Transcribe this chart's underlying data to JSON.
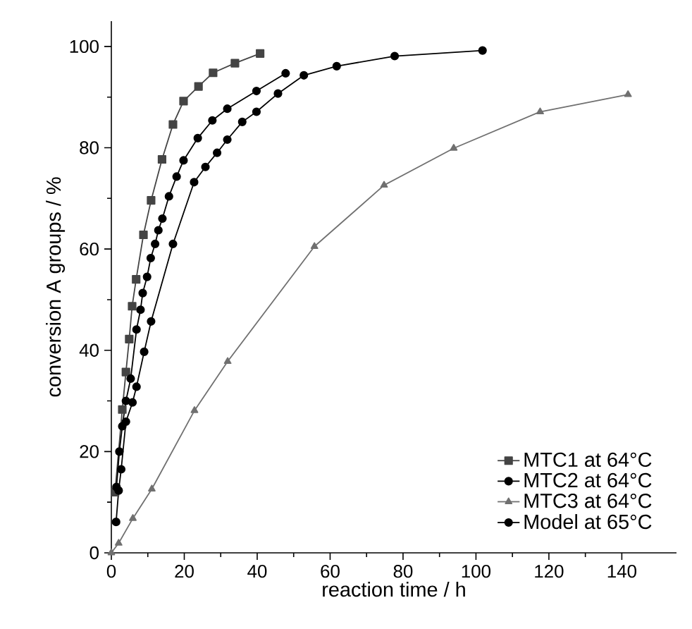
{
  "chart_data": {
    "type": "line",
    "xlabel": "reaction time / h",
    "ylabel": "conversion A groups / %",
    "xlim": [
      0,
      155
    ],
    "ylim": [
      0,
      105
    ],
    "xticks": [
      0,
      20,
      40,
      60,
      80,
      100,
      120,
      140
    ],
    "yticks": [
      0,
      20,
      40,
      60,
      80,
      100
    ],
    "grid": false,
    "legend": "bottom right",
    "line_style": "solid",
    "series": [
      {
        "name": "MTC1 at 64°C",
        "color": "#444444",
        "marker": "square",
        "x": [
          1,
          3.0,
          4.0,
          4.9,
          5.7,
          6.8,
          8.8,
          10.9,
          13.9,
          16.9,
          19.8,
          23.9,
          27.9,
          33.9,
          40.8
        ],
        "values": [
          12,
          28.3,
          35.7,
          42.2,
          48.7,
          54,
          62.8,
          69.6,
          77.7,
          84.6,
          89.2,
          92.1,
          94.8,
          96.7,
          98.6
        ]
      },
      {
        "name": "MTC2 at 64°C",
        "color": "#000000",
        "marker": "circle",
        "x": [
          1.4,
          2.2,
          3.0,
          4.0,
          5.3,
          6.9,
          8.0,
          8.6,
          9.8,
          10.8,
          12.0,
          12.9,
          14.0,
          15.8,
          17.9,
          19.8,
          23.7,
          27.7,
          31.8,
          39.8,
          47.8
        ],
        "values": [
          13,
          20,
          25,
          30,
          34.4,
          44.1,
          48,
          51.3,
          54.5,
          58.2,
          61,
          63.7,
          66,
          70.4,
          74.3,
          77.5,
          81.9,
          85.4,
          87.7,
          91.2,
          94.7
        ]
      },
      {
        "name": "MTC3 at 64°C",
        "color": "#707070",
        "marker": "triangle",
        "x": [
          0,
          2.0,
          5.9,
          11.1,
          22.8,
          31.9,
          55.7,
          74.8,
          93.9,
          117.6,
          141.7
        ],
        "values": [
          0,
          1.9,
          6.8,
          12.6,
          28.1,
          37.8,
          60.5,
          72.6,
          79.9,
          87.1,
          90.5
        ]
      },
      {
        "name": "Model at 65°C",
        "color": "#000000",
        "marker": "circle",
        "x": [
          1.3,
          2.0,
          2.7,
          4.0,
          5.8,
          6.9,
          9.0,
          10.9,
          16.9,
          22.7,
          25.8,
          29.0,
          31.8,
          35.9,
          39.8,
          45.7,
          52.8,
          61.8,
          77.7,
          101.8
        ],
        "values": [
          6.1,
          12.3,
          16.5,
          25.9,
          29.7,
          32.8,
          39.7,
          45.7,
          61,
          73.2,
          76.2,
          79,
          81.6,
          85.1,
          87.1,
          90.7,
          94.3,
          96.1,
          98.1,
          99.2
        ]
      }
    ]
  }
}
